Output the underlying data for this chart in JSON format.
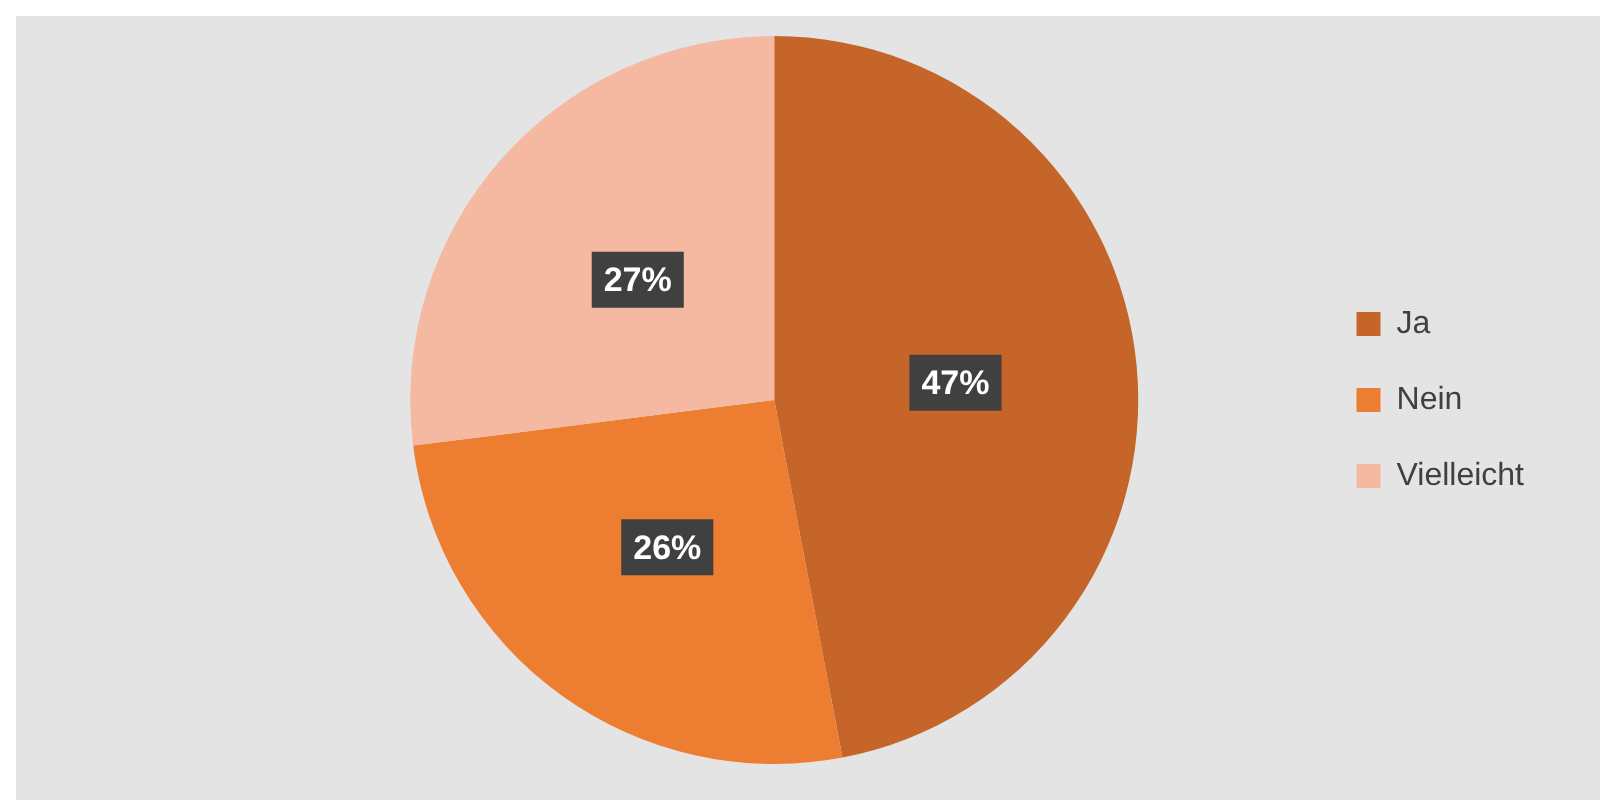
{
  "chart_data": {
    "type": "pie",
    "categories": [
      "Ja",
      "Nein",
      "Vielleicht"
    ],
    "values": [
      47,
      26,
      27
    ],
    "value_labels": [
      "47%",
      "26%",
      "27%"
    ],
    "colors": [
      "#c5652a",
      "#ed7d31",
      "#f4b9a0"
    ],
    "legend": "right"
  }
}
